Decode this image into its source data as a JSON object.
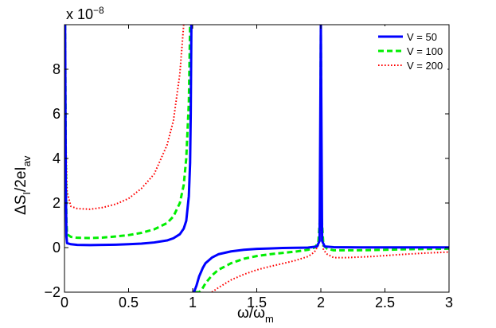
{
  "chart_data": {
    "type": "line",
    "xlabel": "ω/ω",
    "xlabel_sub": "m",
    "ylabel": "ΔS",
    "ylabel_sub1": "I",
    "ylabel_mid": "/2eI",
    "ylabel_sub2": "av",
    "y_multiplier_base": "x 10",
    "y_multiplier_exp": "−8",
    "xlim": [
      0,
      3
    ],
    "ylim": [
      -2,
      10
    ],
    "x_ticks": [
      0,
      0.5,
      1,
      1.5,
      2,
      2.5,
      3
    ],
    "x_tick_labels": [
      "0",
      "0.5",
      "1",
      "1.5",
      "2",
      "2.5",
      "3"
    ],
    "y_ticks": [
      -2,
      0,
      2,
      4,
      6,
      8
    ],
    "y_tick_labels": [
      "−2",
      "0",
      "2",
      "4",
      "6",
      "8"
    ],
    "grid": false,
    "legend_position": "top-right",
    "series": [
      {
        "name": "V = 50",
        "color": "#0000ff",
        "style": "solid",
        "points": [
          [
            0.005,
            10
          ],
          [
            0.01,
            3
          ],
          [
            0.015,
            0.5
          ],
          [
            0.02,
            0.2
          ],
          [
            0.05,
            0.15
          ],
          [
            0.1,
            0.12
          ],
          [
            0.2,
            0.11
          ],
          [
            0.3,
            0.12
          ],
          [
            0.4,
            0.13
          ],
          [
            0.5,
            0.15
          ],
          [
            0.6,
            0.18
          ],
          [
            0.7,
            0.23
          ],
          [
            0.8,
            0.32
          ],
          [
            0.85,
            0.42
          ],
          [
            0.9,
            0.6
          ],
          [
            0.93,
            0.85
          ],
          [
            0.95,
            1.2
          ],
          [
            0.97,
            2.3
          ],
          [
            0.98,
            3.8
          ],
          [
            0.985,
            6
          ],
          [
            0.99,
            10
          ],
          null,
          [
            1.005,
            -2
          ],
          [
            1.01,
            -2
          ],
          [
            1.03,
            -1.7
          ],
          [
            1.05,
            -1.3
          ],
          [
            1.08,
            -0.9
          ],
          [
            1.1,
            -0.7
          ],
          [
            1.15,
            -0.45
          ],
          [
            1.2,
            -0.3
          ],
          [
            1.3,
            -0.17
          ],
          [
            1.4,
            -0.1
          ],
          [
            1.5,
            -0.06
          ],
          [
            1.6,
            -0.04
          ],
          [
            1.7,
            -0.02
          ],
          [
            1.8,
            -0.01
          ],
          [
            1.9,
            0
          ],
          [
            1.97,
            0.05
          ],
          [
            1.99,
            0.3
          ],
          [
            2.0,
            10
          ],
          [
            2.01,
            0.3
          ],
          [
            2.03,
            0.05
          ],
          [
            2.1,
            0.02
          ],
          [
            2.3,
            0.01
          ],
          [
            2.5,
            0.01
          ],
          [
            2.7,
            0.01
          ],
          [
            3.0,
            0.01
          ]
        ]
      },
      {
        "name": "V = 100",
        "color": "#00ee00",
        "style": "dashed",
        "points": [
          [
            0.005,
            10
          ],
          [
            0.01,
            4
          ],
          [
            0.015,
            1.2
          ],
          [
            0.02,
            0.6
          ],
          [
            0.05,
            0.48
          ],
          [
            0.1,
            0.44
          ],
          [
            0.2,
            0.43
          ],
          [
            0.3,
            0.45
          ],
          [
            0.4,
            0.5
          ],
          [
            0.5,
            0.56
          ],
          [
            0.6,
            0.66
          ],
          [
            0.7,
            0.82
          ],
          [
            0.8,
            1.1
          ],
          [
            0.85,
            1.4
          ],
          [
            0.9,
            2
          ],
          [
            0.93,
            2.8
          ],
          [
            0.95,
            4
          ],
          [
            0.97,
            6.5
          ],
          [
            0.98,
            10
          ],
          null,
          [
            1.02,
            -2
          ],
          [
            1.05,
            -2
          ],
          [
            1.07,
            -1.9
          ],
          [
            1.1,
            -1.6
          ],
          [
            1.15,
            -1.25
          ],
          [
            1.2,
            -1
          ],
          [
            1.3,
            -0.7
          ],
          [
            1.4,
            -0.5
          ],
          [
            1.5,
            -0.38
          ],
          [
            1.6,
            -0.3
          ],
          [
            1.7,
            -0.24
          ],
          [
            1.8,
            -0.18
          ],
          [
            1.9,
            -0.1
          ],
          [
            1.95,
            0
          ],
          [
            1.98,
            0.2
          ],
          [
            1.995,
            1.5
          ],
          [
            2.0,
            10
          ],
          [
            2.005,
            1.5
          ],
          [
            2.02,
            0.1
          ],
          [
            2.05,
            -0.05
          ],
          [
            2.1,
            -0.12
          ],
          [
            2.3,
            -0.12
          ],
          [
            2.5,
            -0.1
          ],
          [
            2.7,
            -0.07
          ],
          [
            3.0,
            -0.05
          ]
        ]
      },
      {
        "name": "V = 200",
        "color": "#ff0000",
        "style": "dotted",
        "points": [
          [
            0.005,
            10
          ],
          [
            0.01,
            5
          ],
          [
            0.02,
            2.5
          ],
          [
            0.05,
            1.85
          ],
          [
            0.1,
            1.75
          ],
          [
            0.2,
            1.72
          ],
          [
            0.3,
            1.8
          ],
          [
            0.4,
            1.95
          ],
          [
            0.5,
            2.2
          ],
          [
            0.6,
            2.65
          ],
          [
            0.7,
            3.3
          ],
          [
            0.8,
            4.6
          ],
          [
            0.85,
            5.7
          ],
          [
            0.9,
            7.8
          ],
          [
            0.93,
            10
          ],
          null,
          [
            1.15,
            -2
          ],
          [
            1.2,
            -1.8
          ],
          [
            1.3,
            -1.45
          ],
          [
            1.4,
            -1.2
          ],
          [
            1.5,
            -1
          ],
          [
            1.6,
            -0.85
          ],
          [
            1.7,
            -0.72
          ],
          [
            1.8,
            -0.58
          ],
          [
            1.9,
            -0.4
          ],
          [
            1.95,
            -0.2
          ],
          [
            1.98,
            0.1
          ],
          [
            1.995,
            0.8
          ],
          [
            2.0,
            10
          ],
          [
            2.005,
            0.8
          ],
          [
            2.02,
            -0.1
          ],
          [
            2.05,
            -0.3
          ],
          [
            2.1,
            -0.45
          ],
          [
            2.2,
            -0.45
          ],
          [
            2.4,
            -0.4
          ],
          [
            2.6,
            -0.32
          ],
          [
            2.8,
            -0.25
          ],
          [
            3.0,
            -0.2
          ]
        ]
      }
    ]
  }
}
